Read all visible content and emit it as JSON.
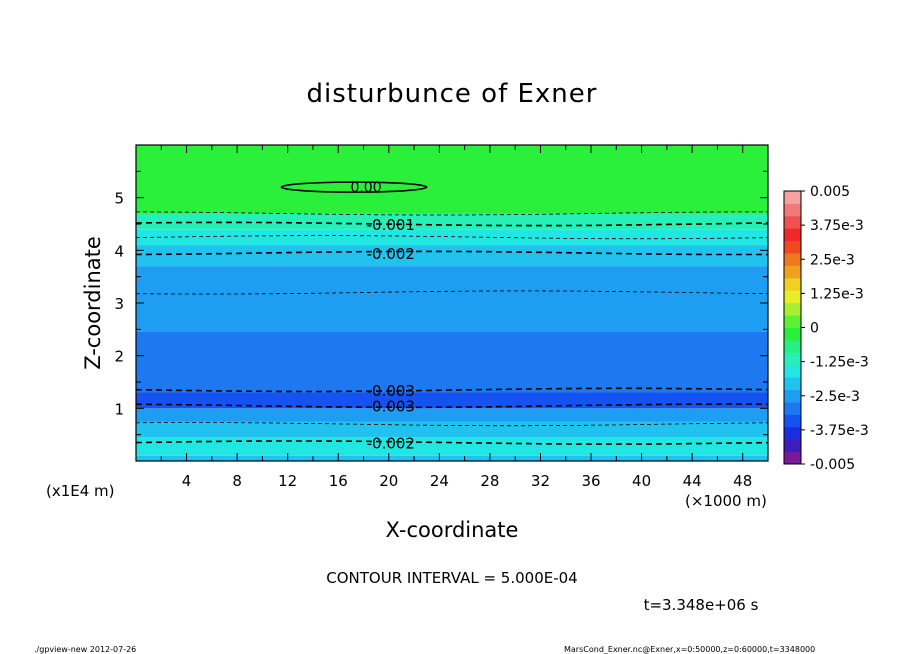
{
  "chart_data": {
    "type": "heatmap",
    "title": "disturbunce of Exner",
    "xlabel": "X-coordinate",
    "ylabel": "Z-coordinate",
    "x_unit_label": "(×1000 m)",
    "y_unit_label": "(x1E4 m)",
    "xlim": [
      0,
      50
    ],
    "ylim": [
      0,
      6
    ],
    "x_ticks": [
      "4",
      "8",
      "12",
      "16",
      "20",
      "24",
      "28",
      "32",
      "36",
      "40",
      "44",
      "48"
    ],
    "y_ticks": [
      "1",
      "2",
      "3",
      "4",
      "5"
    ],
    "colorbar": {
      "labels": [
        "0.005",
        "3.75e-3",
        "2.5e-3",
        "1.25e-3",
        "0",
        "-1.25e-3",
        "-2.5e-3",
        "-3.75e-3",
        "-0.005"
      ],
      "colors": [
        "#7a1a9a",
        "#3d1eb8",
        "#1a2ee0",
        "#1552f2",
        "#1e78f0",
        "#1e9ef2",
        "#22c2f0",
        "#22e6e2",
        "#26f0b8",
        "#26f082",
        "#2af03c",
        "#5ef030",
        "#a6f030",
        "#e6f028",
        "#f0d020",
        "#f0a020",
        "#f07820",
        "#f04820",
        "#f02828",
        "#f05050",
        "#f07a7a",
        "#f5a2a2"
      ]
    },
    "bands": [
      {
        "z0": 0.0,
        "z1": 0.1,
        "color": "#22c2f0"
      },
      {
        "z0": 0.1,
        "z1": 0.45,
        "color": "#22e6e2"
      },
      {
        "z0": 0.45,
        "z1": 0.75,
        "color": "#22c2f0"
      },
      {
        "z0": 0.75,
        "z1": 1.0,
        "color": "#1e9ef2"
      },
      {
        "z0": 1.0,
        "z1": 1.3,
        "color": "#1552f2"
      },
      {
        "z0": 1.3,
        "z1": 2.45,
        "color": "#1e78f0"
      },
      {
        "z0": 2.45,
        "z1": 3.0,
        "color": "#1e9ef2"
      },
      {
        "z0": 3.0,
        "z1": 3.7,
        "color": "#1e9ef2"
      },
      {
        "z0": 3.7,
        "z1": 4.1,
        "color": "#22c2f0"
      },
      {
        "z0": 4.1,
        "z1": 4.4,
        "color": "#22e6e2"
      },
      {
        "z0": 4.4,
        "z1": 4.7,
        "color": "#26f0b8"
      },
      {
        "z0": 4.7,
        "z1": 6.0,
        "color": "#2af03c"
      }
    ],
    "contours": [
      {
        "z": 0.35,
        "label": "-0.002",
        "label_x": 20
      },
      {
        "z": 0.7,
        "label": "",
        "label_x": null
      },
      {
        "z": 1.05,
        "label": "-0.003",
        "label_x": 20
      },
      {
        "z": 1.35,
        "label": "-0.003",
        "label_x": 20
      },
      {
        "z": 3.2,
        "label": "",
        "label_x": null
      },
      {
        "z": 3.95,
        "label": "-0.002",
        "label_x": 20
      },
      {
        "z": 4.25,
        "label": "",
        "label_x": null
      },
      {
        "z": 4.5,
        "label": "-0.001",
        "label_x": 20
      },
      {
        "z": 4.7,
        "label": "",
        "label_x": null
      }
    ],
    "zero_contour": {
      "label": "0.00",
      "x0": 11.5,
      "x1": 23,
      "z": 5.2
    },
    "grid": false,
    "legend": "colorbar-right"
  },
  "contour_interval": "CONTOUR INTERVAL = 5.000E-04",
  "time_label": "t=3.348e+06 s",
  "footer_left": "./gpview-new   2012-07-26",
  "footer_right": "MarsCond_Exner.nc@Exner,x=0:50000,z=0:60000,t=3348000"
}
